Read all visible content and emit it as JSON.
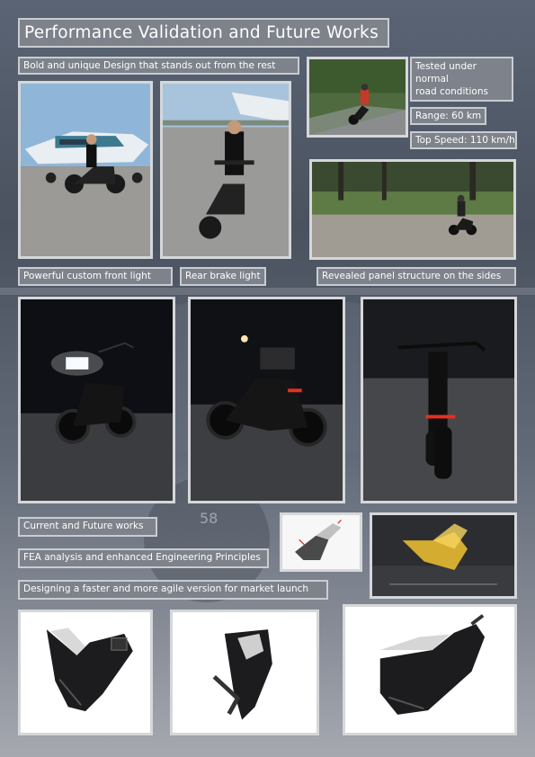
{
  "title": "Performance Validation and Future Works",
  "labels": {
    "design": "Bold and unique Design that stands out from the rest",
    "tested_line1": "Tested under",
    "tested_line2": "normal",
    "tested_line3": "road conditions",
    "range": "Range: 60 km",
    "top_speed": "Top Speed: 110 km/h",
    "front_light": "Powerful custom front light",
    "rear_light": "Rear brake light",
    "panel": "Revealed panel structure on the sides",
    "future": "Current and Future works",
    "fea": "FEA analysis and enhanced Engineering Principles",
    "faster": "Designing a faster and more agile version for market launch"
  },
  "background_number": "58",
  "colors": {
    "label_bg": "#7d828b",
    "label_border": "#c9ccd1",
    "photo_border": "#d5d7da",
    "headlight": "#ffffff",
    "brake_light": "#e83020",
    "fea_yellow": "#f2c330"
  }
}
